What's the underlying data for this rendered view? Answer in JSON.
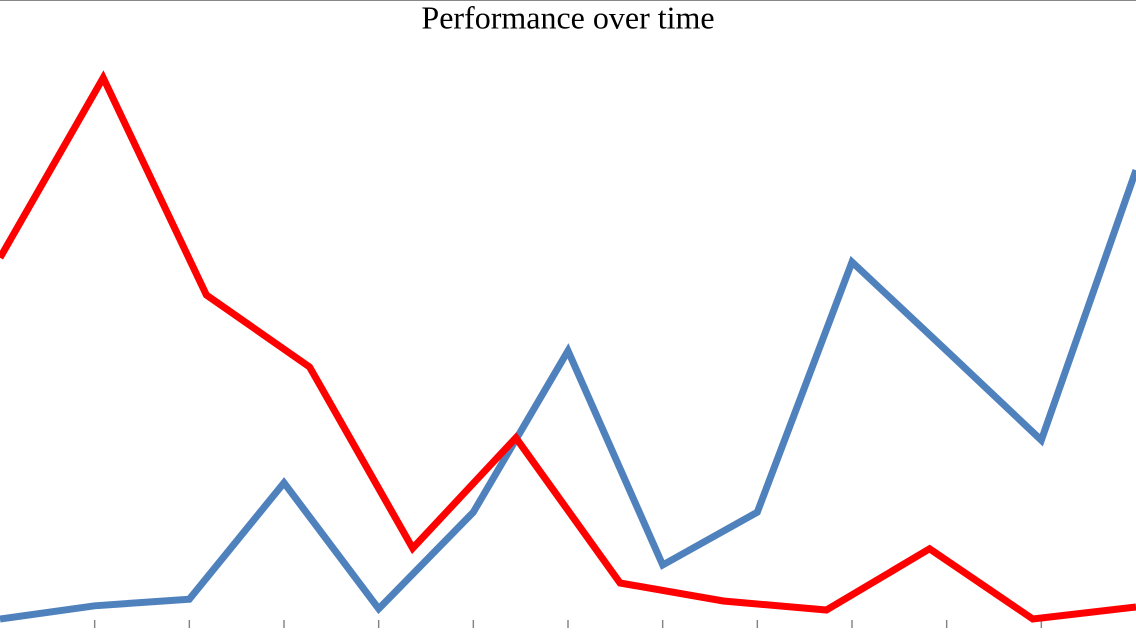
{
  "chart_data": {
    "type": "line",
    "title": "Performance over time",
    "xlim": [
      0,
      12
    ],
    "xticks": [
      1,
      2,
      3,
      4,
      5,
      6,
      7,
      8,
      9,
      10,
      11
    ],
    "ylim": [
      0,
      100
    ],
    "series": [
      {
        "color": "#4f81bd",
        "x": [
          0,
          1,
          2,
          3,
          4,
          5,
          6,
          7,
          8,
          9,
          10,
          11,
          12
        ],
        "values": [
          2.5,
          4.7,
          5.8,
          25.2,
          4.2,
          20.3,
          47.2,
          11.5,
          20.3,
          62,
          47.2,
          32.3,
          77.3
        ]
      },
      {
        "color": "#ff0000",
        "x": [
          0,
          1.09,
          2.18,
          3.27,
          4.36,
          5.45,
          6.55,
          7.64,
          8.73,
          9.82,
          10.91,
          12
        ],
        "values": [
          62.7,
          92.7,
          56.5,
          44.5,
          14.3,
          32.7,
          8.5,
          5.5,
          4,
          14.2,
          2.5,
          4.5
        ]
      }
    ]
  }
}
